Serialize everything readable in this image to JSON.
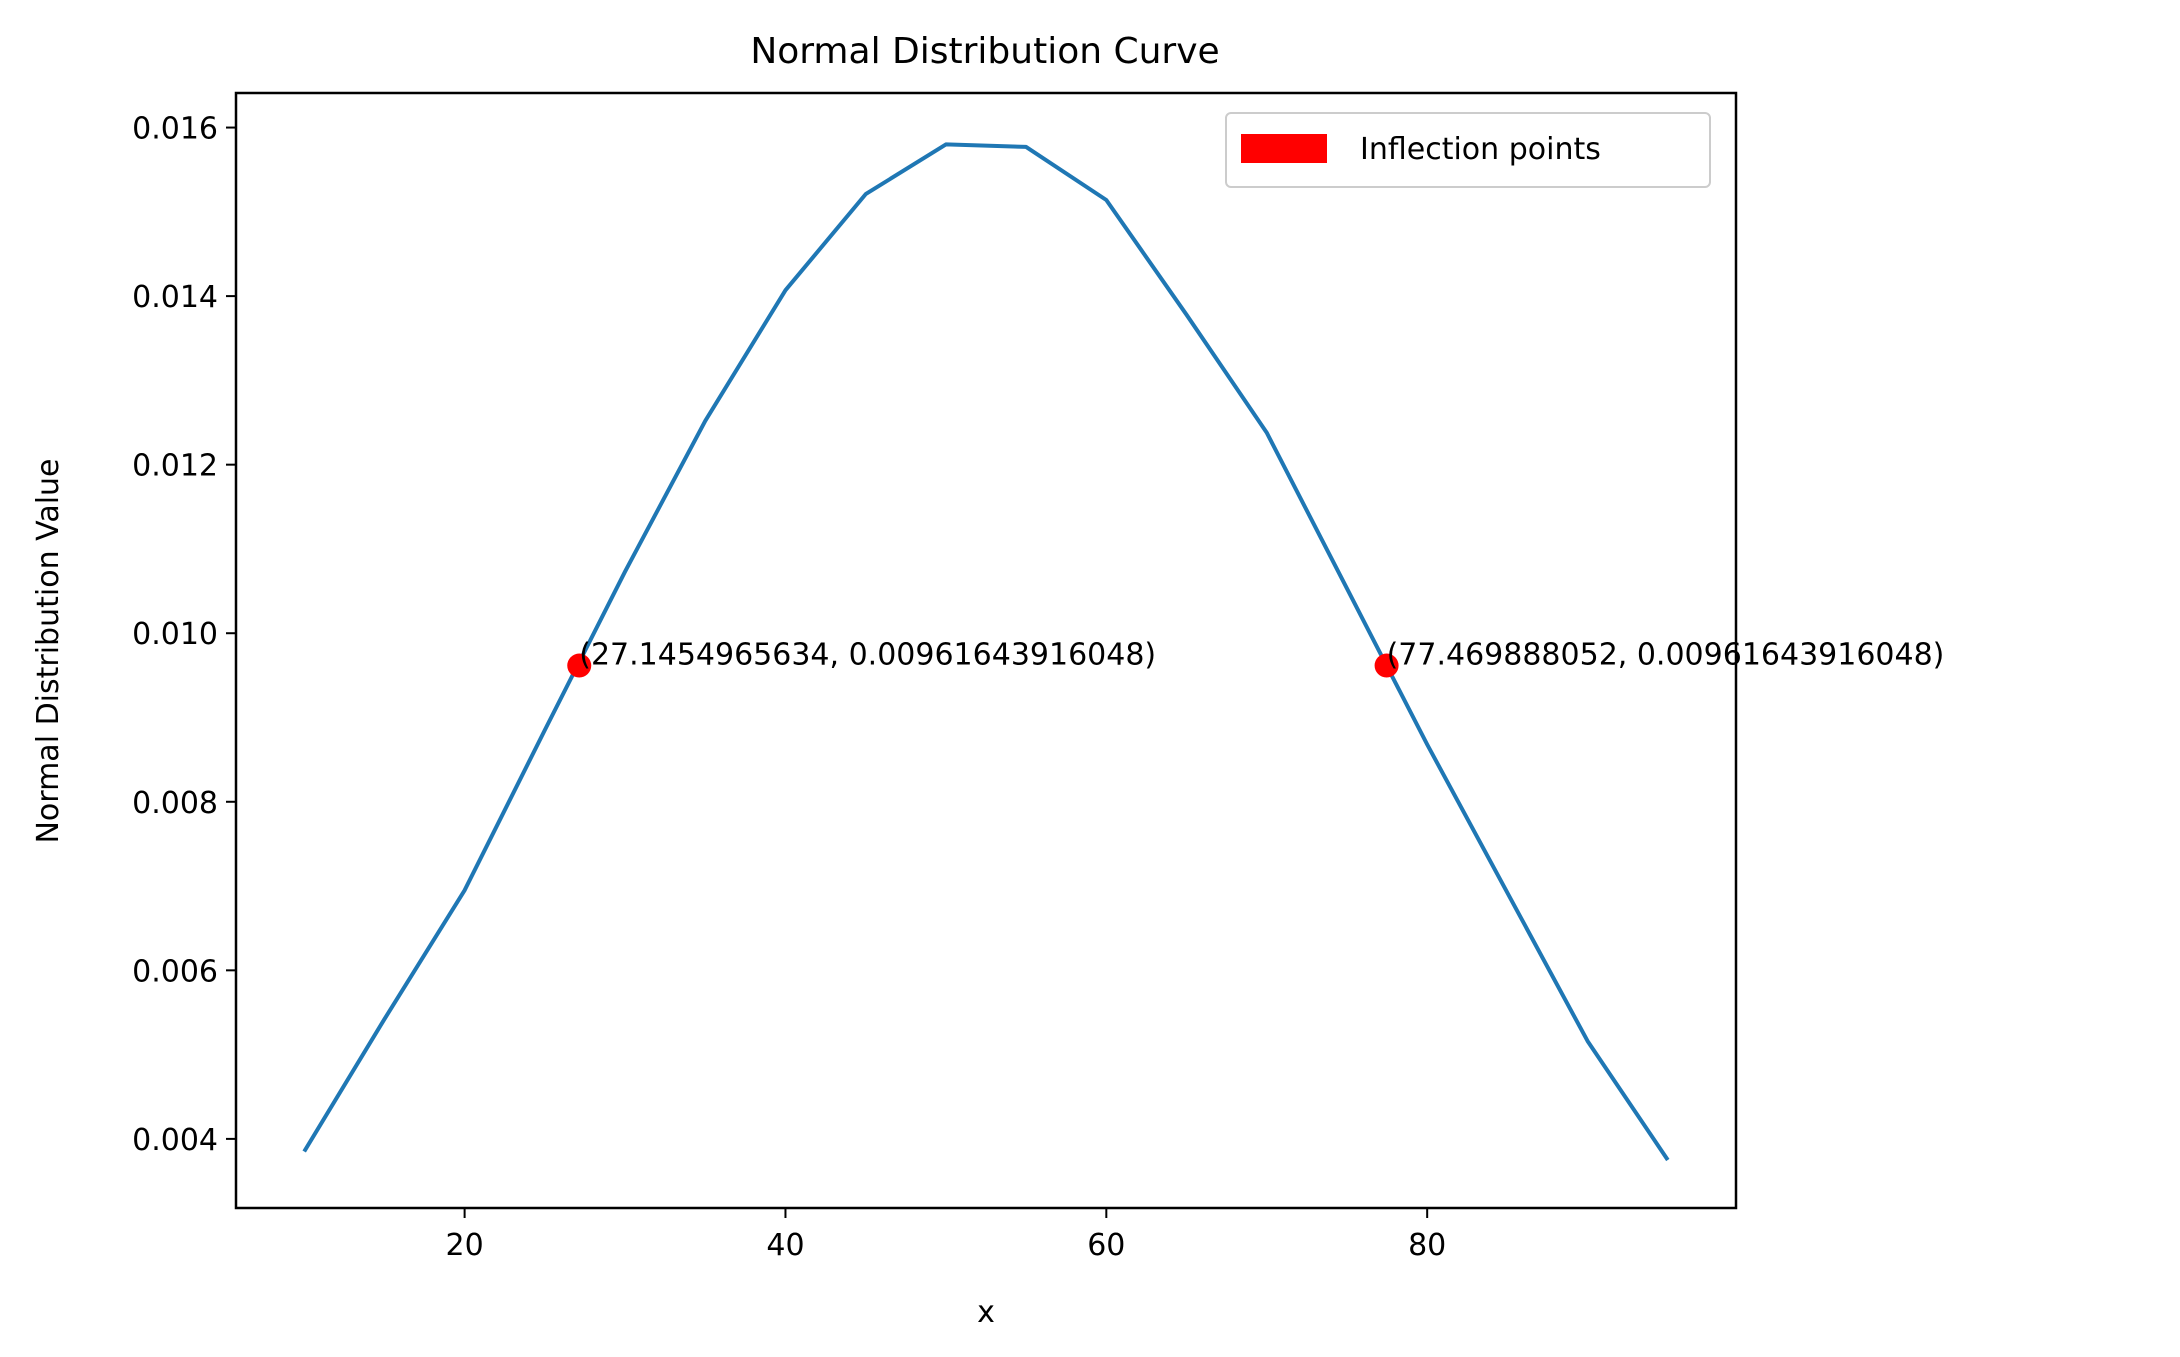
{
  "chart_data": {
    "type": "line",
    "title": "Normal Distribution Curve",
    "xlabel": "x",
    "ylabel": "Normal Distribution Value",
    "xlim": [
      5.75,
      99.25
    ],
    "ylim": [
      0.00318,
      0.01641
    ],
    "x_ticks": [
      20,
      40,
      60,
      80
    ],
    "y_ticks": [
      0.004,
      0.006,
      0.008,
      0.01,
      0.012,
      0.014,
      0.016
    ],
    "x_tick_labels": [
      "20",
      "40",
      "60",
      "80"
    ],
    "y_tick_labels": [
      "0.004",
      "0.006",
      "0.008",
      "0.010",
      "0.012",
      "0.014",
      "0.016"
    ],
    "grid": false,
    "legend_position": "top-right",
    "series": [
      {
        "x": [
          10,
          15,
          20,
          25,
          30,
          35,
          40,
          45,
          50,
          55,
          60,
          65,
          70,
          75,
          80,
          85,
          90,
          95
        ],
        "values": [
          0.00385,
          0.00542,
          0.00695,
          0.00885,
          0.01073,
          0.01252,
          0.01407,
          0.01521,
          0.0158,
          0.01577,
          0.01514,
          0.01378,
          0.01238,
          0.01053,
          0.00868,
          0.00692,
          0.00516,
          0.00375
        ],
        "color": "#1f77b4"
      }
    ],
    "scatter": {
      "name": "Inflection points",
      "color": "#ff0000",
      "points": [
        {
          "x": 27.1454965634,
          "y": 0.00961643916048,
          "label": "(27.1454965634, 0.00961643916048)"
        },
        {
          "x": 77.469888052,
          "y": 0.00961643916048,
          "label": "(77.469888052, 0.00961643916048)"
        }
      ]
    },
    "legend": [
      {
        "label": "Inflection points",
        "color": "#ff0000"
      }
    ]
  }
}
